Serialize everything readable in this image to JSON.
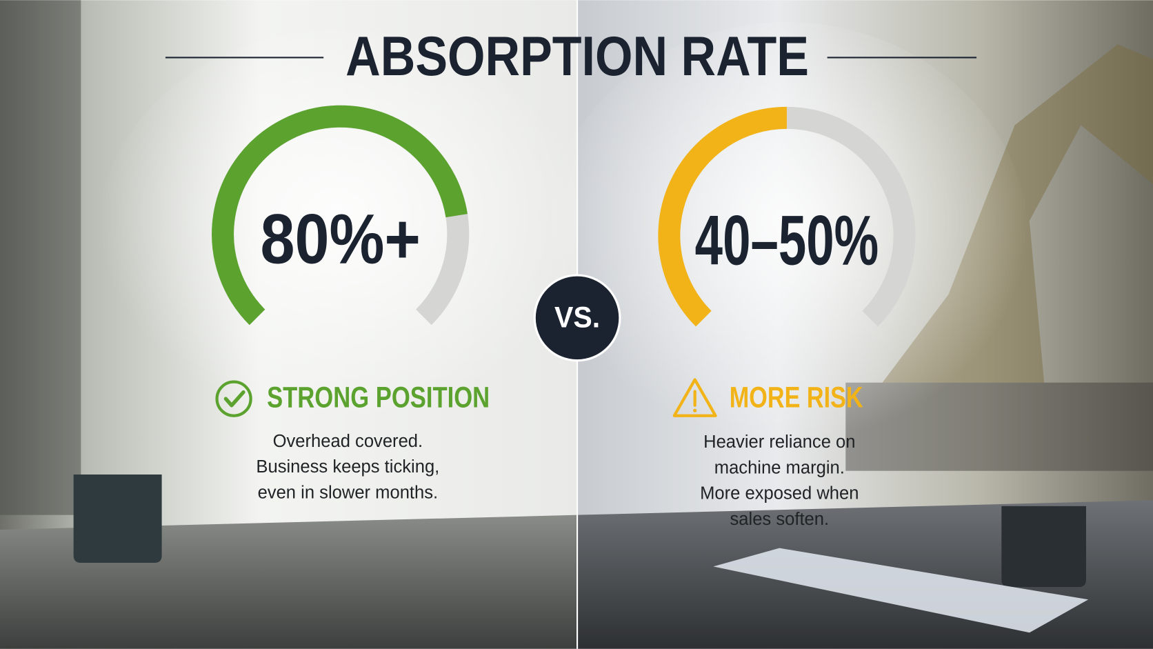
{
  "title": "ABSORPTION RATE",
  "vs": "VS.",
  "panels": [
    {
      "gauge_label": "80%+",
      "fill": 80,
      "color": "#5ba22e",
      "status": "STRONG POSITION",
      "icon": "check",
      "description": [
        "Overhead covered.",
        "Business keeps ticking,",
        "even in slower months."
      ]
    },
    {
      "gauge_label": "40–50%",
      "fill": 50,
      "color": "#f2b318",
      "status": "MORE RISK",
      "icon": "warning",
      "description": [
        "Heavier reliance on",
        "machine margin.",
        "More exposed when",
        "sales soften."
      ]
    }
  ]
}
